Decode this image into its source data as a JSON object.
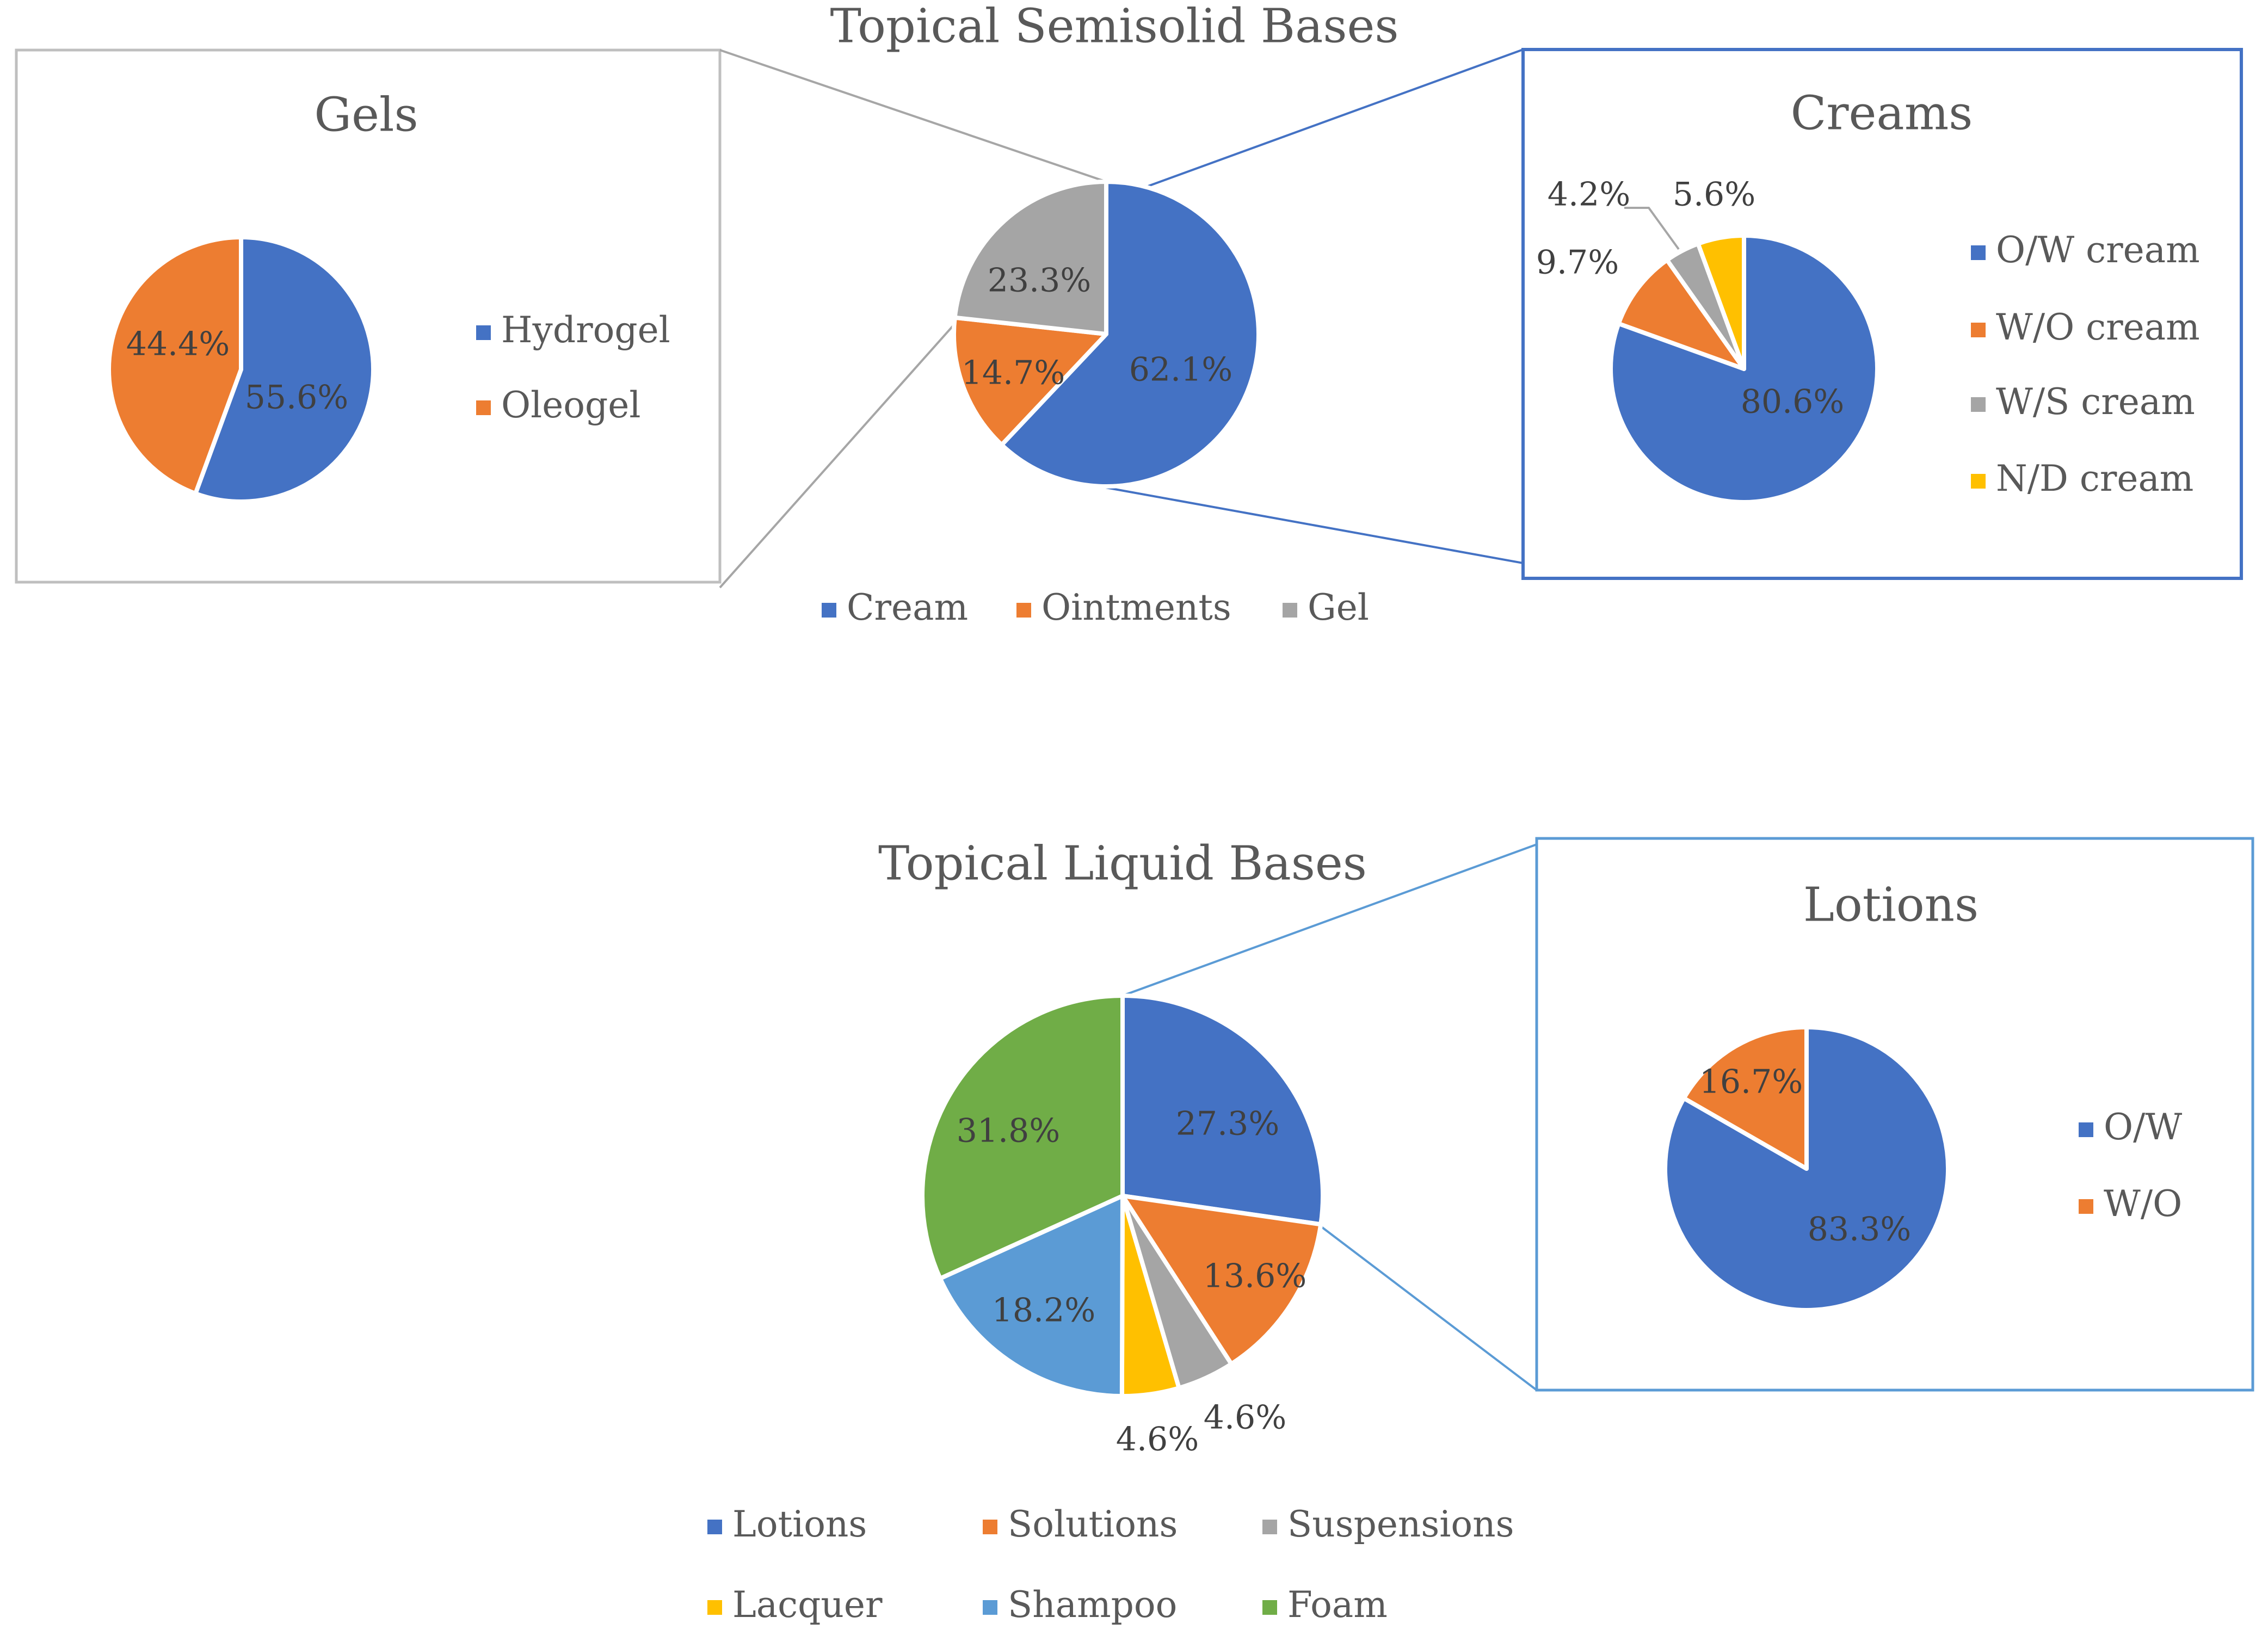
{
  "chart_data": [
    {
      "id": "semisolid",
      "type": "pie",
      "title": "Topical Semisolid Bases",
      "categories": [
        "Cream",
        "Ointments",
        "Gel"
      ],
      "values": [
        62.1,
        14.7,
        23.3
      ],
      "labels": [
        "62.1%",
        "14.7%",
        "23.3%"
      ],
      "colors": [
        "#4472C4",
        "#ED7D31",
        "#A5A5A5"
      ],
      "legend": "bottom"
    },
    {
      "id": "gels",
      "type": "pie",
      "title": "Gels",
      "categories": [
        "Hydrogel",
        "Oleogel"
      ],
      "values": [
        55.6,
        44.4
      ],
      "labels": [
        "55.6%",
        "44.4%"
      ],
      "colors": [
        "#4472C4",
        "#ED7D31"
      ],
      "legend": "right"
    },
    {
      "id": "creams",
      "type": "pie",
      "title": "Creams",
      "categories": [
        "O/W cream",
        "W/O cream",
        "W/S cream",
        "N/D cream"
      ],
      "values": [
        80.6,
        9.7,
        4.2,
        5.6
      ],
      "labels": [
        "80.6%",
        "9.7%",
        "4.2%",
        "5.6%"
      ],
      "colors": [
        "#4472C4",
        "#ED7D31",
        "#A5A5A5",
        "#FFC000"
      ],
      "legend": "right"
    },
    {
      "id": "liquid",
      "type": "pie",
      "title": "Topical Liquid Bases",
      "categories": [
        "Lotions",
        "Solutions",
        "Suspensions",
        "Lacquer",
        "Shampoo",
        "Foam"
      ],
      "values": [
        27.3,
        13.6,
        4.6,
        4.6,
        18.2,
        31.8
      ],
      "labels": [
        "27.3%",
        "13.6%",
        "4.6%",
        "4.6%",
        "18.2%",
        "31.8%"
      ],
      "colors": [
        "#4472C4",
        "#ED7D31",
        "#A5A5A5",
        "#FFC000",
        "#5B9BD5",
        "#70AD47"
      ],
      "legend": "bottom"
    },
    {
      "id": "lotions",
      "type": "pie",
      "title": "Lotions",
      "categories": [
        "O/W",
        "W/O"
      ],
      "values": [
        83.3,
        16.7
      ],
      "labels": [
        "83.3%",
        "16.7%"
      ],
      "colors": [
        "#4472C4",
        "#ED7D31"
      ],
      "legend": "right"
    }
  ]
}
